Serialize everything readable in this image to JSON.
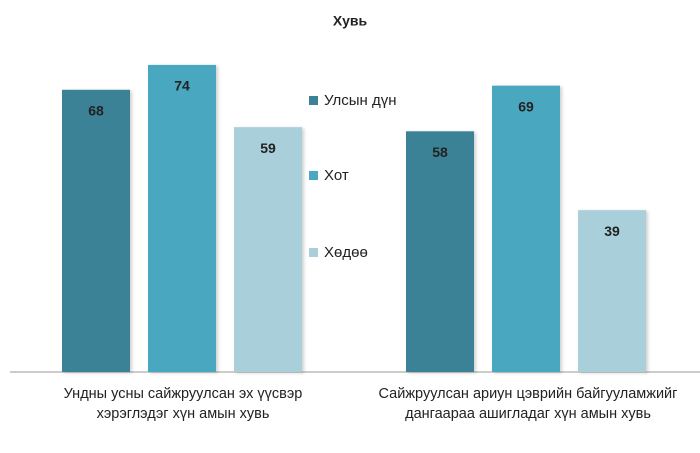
{
  "chart_data": {
    "type": "bar",
    "title": "Хувь",
    "categories": [
      "Ундны усны сайжруулсан эх үүсвэр хэрэглэдэг хүн амын хувь",
      "Сайжруулсан ариун цэврийн байгууламжийг дангаараа ашигладаг хүн амын хувь"
    ],
    "series": [
      {
        "name": "Улсын дүн",
        "color": "#3b8296",
        "values": [
          68,
          58
        ]
      },
      {
        "name": "Хот",
        "color": "#4aa8c0",
        "values": [
          74,
          69
        ]
      },
      {
        "name": "Хөдөө",
        "color": "#a9cfdb",
        "values": [
          59,
          39
        ]
      }
    ],
    "legend": "center"
  }
}
